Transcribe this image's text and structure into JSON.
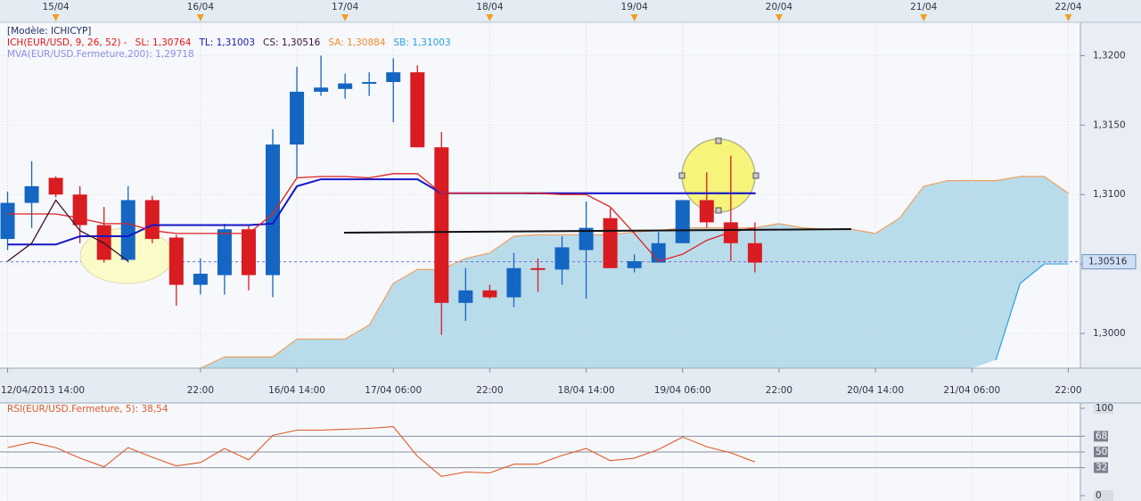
{
  "chart_data": [
    {
      "type": "candlestick",
      "legend": [
        [
          {
            "text": "[Modèle: ICHICYP]",
            "color": "#203060"
          }
        ],
        [
          {
            "text": "ICH(EUR/USD, 9, 26, 52) -",
            "color": "#e01818"
          },
          {
            "text": "SL: 1,30764",
            "color": "#e01818"
          },
          {
            "text": "TL: 1,31003",
            "color": "#1818b0"
          },
          {
            "text": "CS: 1,30516",
            "color": "#3a1040"
          },
          {
            "text": "SA: 1,30884",
            "color": "#f08a30"
          },
          {
            "text": "SB: 1,31003",
            "color": "#2aa0e0"
          }
        ],
        [
          {
            "text": "MVA(EUR/USD.Fermeture,200): 1,29718",
            "color": "#8c8ce8"
          }
        ]
      ],
      "categories": [
        "12/04/2013 14:00",
        null,
        null,
        null,
        null,
        null,
        null,
        null,
        "22:00",
        null,
        null,
        null,
        "16/04 14:00",
        null,
        null,
        null,
        "17/04 06:00",
        null,
        null,
        null,
        "22:00",
        null,
        null,
        null,
        "18/04 14:00",
        null,
        null,
        null,
        "19/04 06:00",
        null,
        null,
        null,
        "22:00",
        null,
        null,
        null,
        "20/04 14:00",
        null,
        null,
        null,
        "21/04 06:00",
        null,
        null,
        null,
        "22:00"
      ],
      "top_labels": [
        null,
        null,
        "15/04",
        null,
        null,
        null,
        null,
        null,
        "16/04",
        null,
        null,
        null,
        null,
        null,
        "17/04",
        null,
        null,
        null,
        null,
        null,
        "18/04",
        null,
        null,
        null,
        null,
        null,
        "19/04",
        null,
        null,
        null,
        null,
        null,
        "20/04",
        null,
        null,
        null,
        null,
        null,
        "21/04",
        null,
        null,
        null,
        null,
        null,
        "22/04"
      ],
      "open": [
        1.3068,
        1.3094,
        1.3112,
        1.31,
        1.3078,
        1.3053,
        1.3096,
        1.3069,
        1.3035,
        1.3042,
        1.3075,
        1.3042,
        1.3136,
        1.3174,
        1.3176,
        1.318,
        1.3181,
        1.3188,
        1.3134,
        1.3022,
        1.3031,
        1.3026,
        1.3047,
        1.3046,
        1.306,
        1.3083,
        1.3047,
        1.3051,
        1.3065,
        1.3096,
        1.308,
        1.3065,
        null,
        null,
        null,
        null,
        null,
        null,
        null,
        null,
        null,
        null,
        null,
        null,
        null
      ],
      "high": [
        1.3102,
        1.3124,
        1.3113,
        1.3106,
        1.3091,
        1.3106,
        1.3099,
        1.3071,
        1.3054,
        1.3079,
        1.3078,
        1.3147,
        1.3192,
        1.32,
        1.3187,
        1.3188,
        1.3198,
        1.3193,
        1.3145,
        1.3047,
        1.3035,
        1.3058,
        1.3054,
        1.307,
        1.3095,
        1.309,
        1.3057,
        1.3073,
        1.3096,
        1.3116,
        1.3128,
        1.308,
        null,
        null,
        null,
        null,
        null,
        null,
        null,
        null,
        null,
        null,
        null,
        null,
        null
      ],
      "low": [
        1.306,
        1.3076,
        1.3098,
        1.3065,
        1.3051,
        1.3051,
        1.3065,
        1.302,
        1.3028,
        1.3028,
        1.3031,
        1.3026,
        1.3112,
        1.3171,
        1.3169,
        1.3171,
        1.3152,
        1.3134,
        1.2999,
        1.3009,
        1.3025,
        1.3019,
        1.303,
        1.3035,
        1.3025,
        1.3047,
        1.3044,
        1.3051,
        1.3065,
        1.3076,
        1.3052,
        1.3044,
        null,
        null,
        null,
        null,
        null,
        null,
        null,
        null,
        null,
        null,
        null,
        null,
        null
      ],
      "close": [
        1.3094,
        1.3106,
        1.31,
        1.3078,
        1.3053,
        1.3096,
        1.3068,
        1.3035,
        1.3043,
        1.3075,
        1.3042,
        1.3136,
        1.3174,
        1.3177,
        1.318,
        1.3181,
        1.3188,
        1.3134,
        1.3022,
        1.3031,
        1.3026,
        1.3047,
        1.3046,
        1.3062,
        1.3076,
        1.3047,
        1.3052,
        1.3065,
        1.3096,
        1.308,
        1.3065,
        1.3051,
        null,
        null,
        null,
        null,
        null,
        null,
        null,
        null,
        null,
        null,
        null,
        null,
        null
      ],
      "up_color": "#1466c2",
      "down_color": "#d81c22",
      "lines": [
        {
          "color": "#1616c8",
          "values": [
            1.3064,
            1.3064,
            1.3064,
            1.307,
            1.307,
            1.307,
            1.3078,
            1.3078,
            1.3078,
            1.3078,
            1.3078,
            1.3079,
            1.3106,
            1.3111,
            1.3111,
            1.3111,
            1.3111,
            1.3111,
            1.3101,
            1.3101,
            1.3101,
            1.3101,
            1.3101,
            1.3101,
            1.3101,
            1.3101,
            1.3101,
            1.3101,
            1.3101,
            1.3101,
            1.3101,
            1.3101,
            null,
            null,
            null,
            null,
            null,
            null,
            null,
            null,
            null,
            null,
            null,
            null,
            null
          ]
        },
        {
          "color": "#e02020",
          "values": [
            1.3086,
            1.3086,
            1.3086,
            1.3083,
            1.3079,
            1.3079,
            1.3074,
            1.3072,
            1.3072,
            1.3072,
            1.3072,
            1.3086,
            1.3112,
            1.3113,
            1.3113,
            1.3112,
            1.3115,
            1.3115,
            1.3101,
            1.3101,
            1.3101,
            1.3101,
            1.3101,
            1.31,
            1.31,
            1.3091,
            1.3072,
            1.3052,
            1.3057,
            1.3067,
            1.3073,
            1.3076,
            null,
            null,
            null,
            null,
            null,
            null,
            null,
            null,
            null,
            null,
            null,
            null,
            null
          ]
        },
        {
          "color": "#3a1030",
          "values": [
            1.3052,
            1.3065,
            1.3096,
            1.3074,
            1.3065,
            1.3052,
            null,
            null,
            null,
            null,
            null,
            null,
            null,
            null,
            null,
            null,
            null,
            null,
            null,
            null,
            null,
            null,
            null,
            null,
            null,
            null,
            null,
            null,
            null,
            null,
            null,
            null,
            null,
            null,
            null,
            null,
            null,
            null,
            null,
            null,
            null,
            null,
            null,
            null,
            null
          ]
        }
      ],
      "cloud": {
        "fill": "#b9dcea",
        "upper": {
          "color": "#f0a060",
          "values": [
            null,
            null,
            null,
            null,
            null,
            null,
            null,
            null,
            1.2975,
            1.2983,
            1.2983,
            1.2983,
            1.2996,
            1.2996,
            1.2996,
            1.3006,
            1.3036,
            1.3046,
            1.3046,
            1.3054,
            1.3058,
            1.307,
            1.3071,
            1.3071,
            1.3071,
            1.3071,
            1.3073,
            1.3074,
            1.3076,
            1.3076,
            1.3076,
            1.3076,
            1.3079,
            1.3076,
            1.3075,
            1.3075,
            1.3072,
            1.3083,
            1.3106,
            1.311,
            1.311,
            1.311,
            1.3113,
            1.3113,
            1.3101
          ]
        },
        "lower": {
          "color": "#2a9fe0",
          "values": [
            null,
            null,
            null,
            null,
            null,
            null,
            null,
            null,
            null,
            null,
            null,
            null,
            null,
            null,
            null,
            null,
            null,
            null,
            null,
            null,
            null,
            null,
            null,
            null,
            null,
            null,
            null,
            null,
            null,
            null,
            null,
            null,
            null,
            null,
            null,
            null,
            null,
            null,
            null,
            null,
            null,
            1.2981,
            1.3036,
            1.305,
            1.305
          ]
        }
      },
      "last_price": {
        "value": 1.30516,
        "label": "1,30516"
      },
      "ylim": [
        1.2975,
        1.3224
      ],
      "yticks": [
        {
          "value": 1.3,
          "label": "1,3000"
        },
        {
          "value": 1.305,
          "label": "1,3050"
        },
        {
          "value": 1.31,
          "label": "1,3100"
        },
        {
          "value": 1.315,
          "label": "1,3150"
        },
        {
          "value": 1.32,
          "label": "1,3200"
        }
      ],
      "grid": true
    },
    {
      "type": "line",
      "title": "RSI(EUR/USD.Fermeture, 5): 38,54",
      "color": "#e05a28",
      "values": [
        55,
        61,
        55,
        43,
        33,
        55,
        44,
        34,
        38,
        54,
        41,
        69,
        75,
        75,
        76,
        77,
        79,
        45,
        22,
        27,
        26,
        36,
        36,
        46,
        54,
        40,
        43,
        53,
        67,
        56,
        49,
        38.54
      ],
      "ylim": [
        0,
        100
      ],
      "yticks": [
        100,
        68,
        50,
        32,
        0
      ]
    }
  ]
}
